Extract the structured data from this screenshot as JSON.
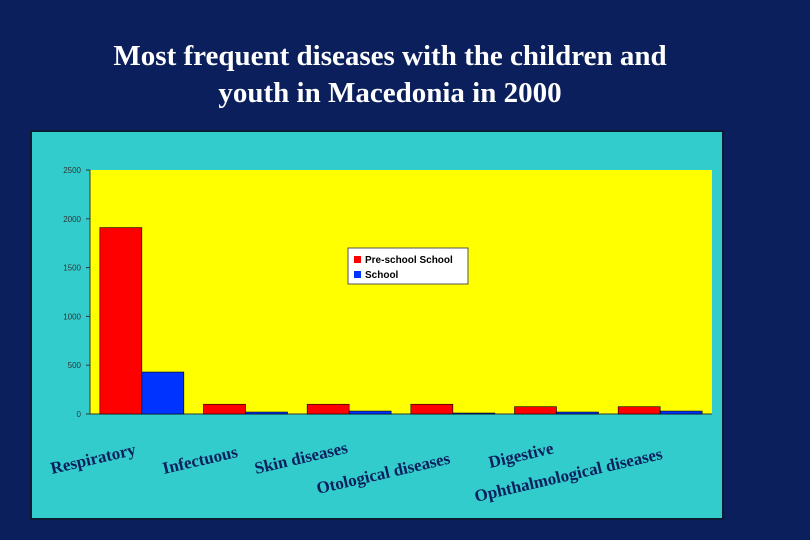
{
  "slide": {
    "title_line1": "Most frequent diseases with the children and",
    "title_line2": "youth in Macedonia  in 2000"
  },
  "colors": {
    "background": "#0a1f5c",
    "frame": "#33cccc",
    "plot_area": "#ffff00",
    "preschool": "#ff0000",
    "school": "#0033ff"
  },
  "chart_data": {
    "type": "bar",
    "title": "",
    "xlabel": "",
    "ylabel": "",
    "ylim": [
      0,
      2500
    ],
    "yticks": [
      "0",
      "500",
      "1000",
      "1500",
      "2000",
      "2500"
    ],
    "grid": false,
    "legend_position": "top-right",
    "categories": [
      "Respiratory",
      "Infectuous",
      "Skin diseases",
      "Otological diseases",
      "Digestive",
      "Ophthalmological diseases"
    ],
    "series": [
      {
        "name": "Pre-school School",
        "values": [
          1910,
          100,
          100,
          100,
          75,
          75
        ]
      },
      {
        "name": "School",
        "values": [
          430,
          20,
          30,
          10,
          20,
          30
        ]
      }
    ]
  }
}
